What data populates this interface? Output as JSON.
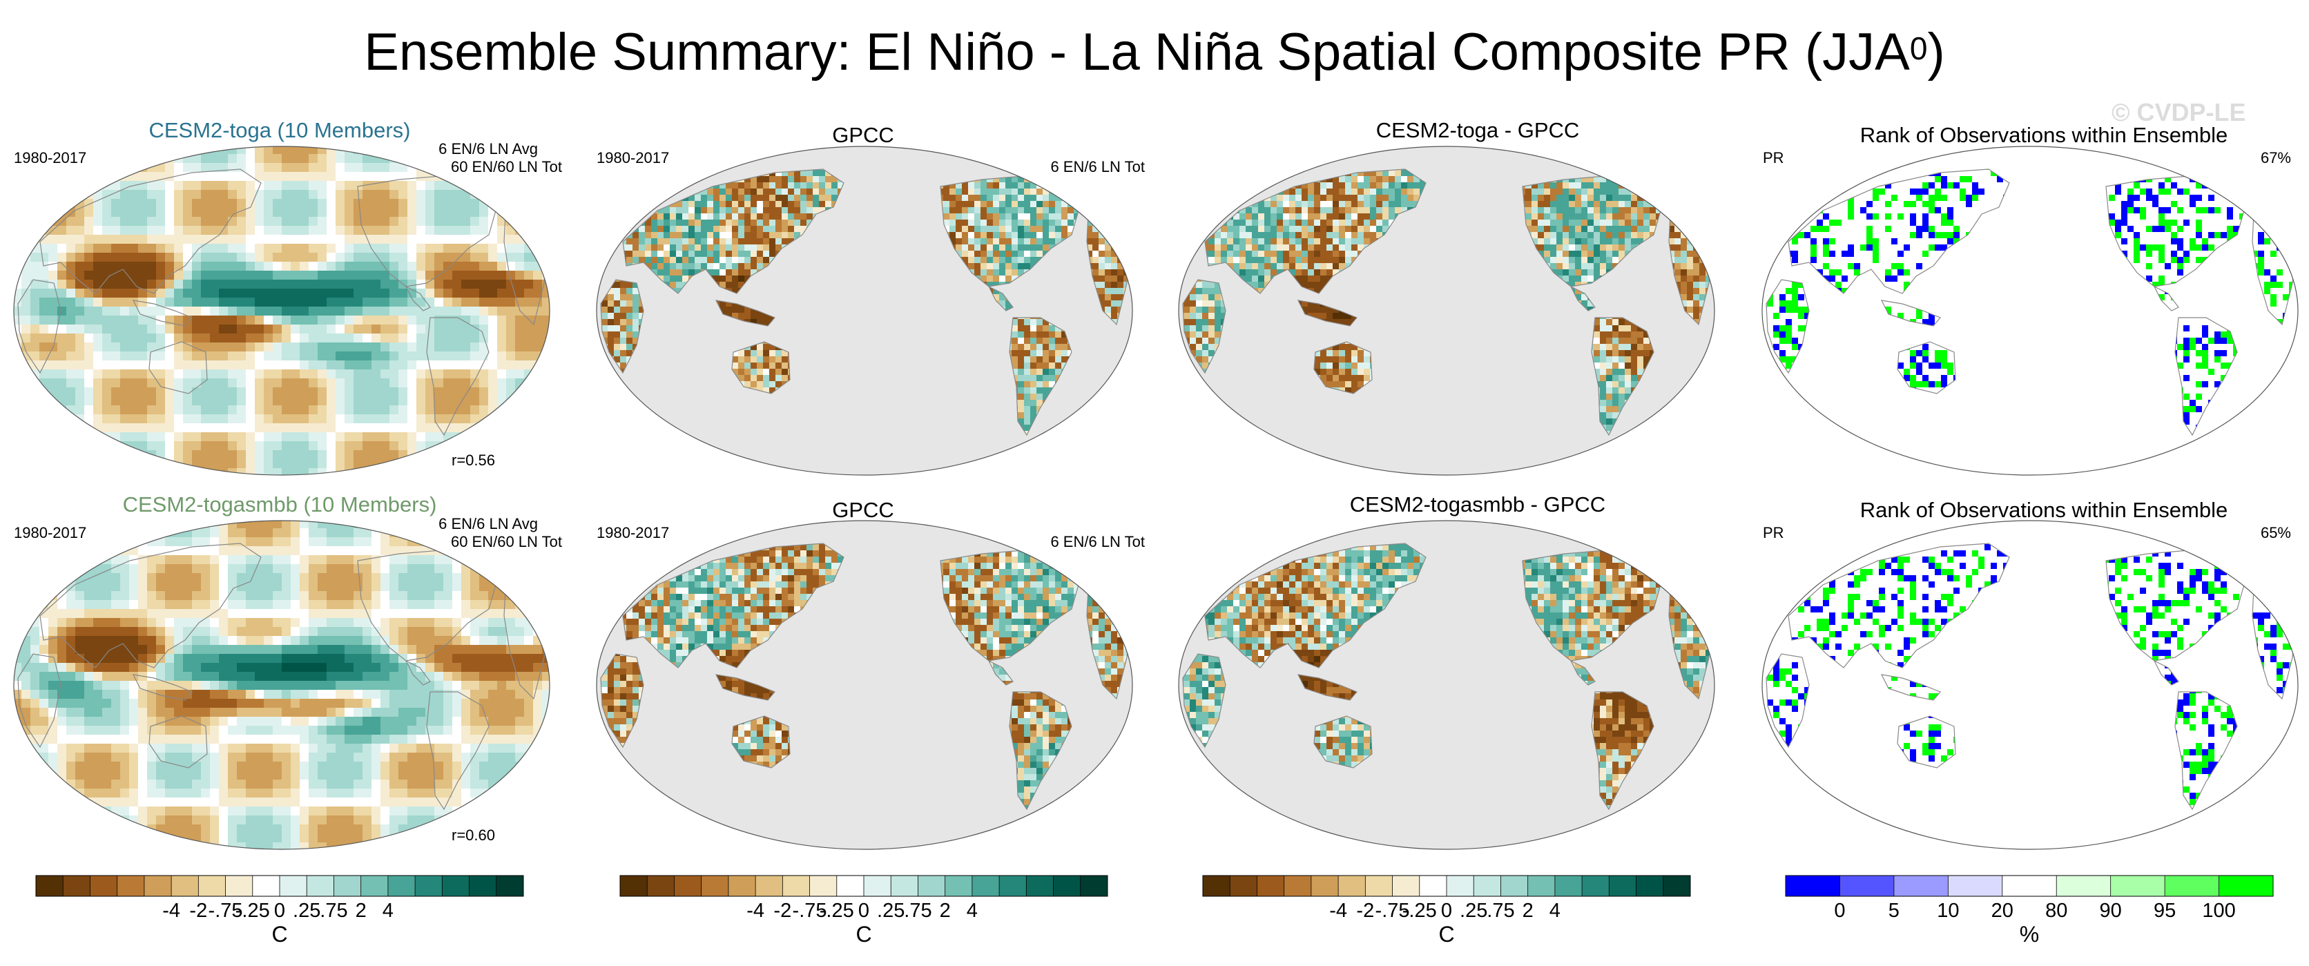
{
  "title": "Ensemble Summary: El Niño - La Niña Spatial Composite PR (JJA",
  "title_superscript": "0",
  "title_close": ")",
  "watermark": "© CVDP-LE",
  "colors": {
    "diverging": [
      "#543005",
      "#7a4511",
      "#9c5b1d",
      "#b97a35",
      "#cf9e58",
      "#e0bf80",
      "#eed9a8",
      "#f6ecd2",
      "#ffffff",
      "#e0f2ef",
      "#c4e7e1",
      "#a0d6cd",
      "#74c0b3",
      "#48a496",
      "#24877a",
      "#0d6b5d",
      "#005447",
      "#003c30"
    ],
    "rank": [
      "#0000ff",
      "#5555ff",
      "#9a9aff",
      "#dadaff",
      "#ffffff",
      "#dcffdc",
      "#a8ffa8",
      "#60ff60",
      "#00ff00"
    ],
    "ocean_masked": "#e6e6e6",
    "coast": "#888888"
  },
  "rows": [
    {
      "model": {
        "title": "CESM2-toga (10 Members)",
        "title_color": "#2a7390",
        "period": "1980-2017",
        "counts_line1": "6 EN/6 LN Avg",
        "counts_line2": "60 EN/60 LN Tot",
        "corr": "r=0.56"
      },
      "obs": {
        "title": "GPCC",
        "period": "1980-2017",
        "counts_line1": "6 EN/6 LN Tot"
      },
      "diff": {
        "title": "CESM2-toga - GPCC"
      },
      "rank": {
        "title": "Rank of Observations within Ensemble",
        "var": "PR",
        "pct": "67%"
      }
    },
    {
      "model": {
        "title": "CESM2-togasmbb (10 Members)",
        "title_color": "#6f9a6a",
        "period": "1980-2017",
        "counts_line1": "6 EN/6 LN Avg",
        "counts_line2": "60 EN/60 LN Tot",
        "corr": "r=0.60"
      },
      "obs": {
        "title": "GPCC",
        "period": "1980-2017",
        "counts_line1": "6 EN/6 LN Tot"
      },
      "diff": {
        "title": "CESM2-togasmbb - GPCC"
      },
      "rank": {
        "title": "Rank of Observations within Ensemble",
        "var": "PR",
        "pct": "65%"
      }
    }
  ],
  "colorbars": {
    "diverging": {
      "ticks": [
        "-4",
        "-2",
        "-.75",
        "-.25",
        "0",
        ".25",
        ".75",
        "2",
        "4"
      ],
      "unit": "C"
    },
    "rank": {
      "ticks": [
        "0",
        "5",
        "10",
        "20",
        "80",
        "90",
        "95",
        "100"
      ],
      "unit": "%"
    }
  },
  "chart_data": [
    {
      "type": "heatmap",
      "title": "CESM2-toga (10 Members)",
      "projection": "Robinson (Pacific-centered)",
      "period": "1980-2017",
      "units": "C",
      "color_levels": [
        -4,
        -2,
        -0.75,
        -0.25,
        0,
        0.25,
        0.75,
        2,
        4
      ],
      "pattern_correlation": 0.56,
      "features": [
        "strong positive anomaly central/eastern equatorial Pacific",
        "negative anomalies over Maritime Continent and tropical Atlantic/Indian Ocean bands"
      ]
    },
    {
      "type": "heatmap",
      "title": "GPCC",
      "period": "1980-2017",
      "units": "C",
      "ocean_masked": true,
      "features": [
        "land-only observed composite",
        "negative anomalies over Indonesia, India and northern South America"
      ]
    },
    {
      "type": "heatmap",
      "title": "CESM2-toga - GPCC",
      "units": "C",
      "ocean_masked": true
    },
    {
      "type": "heatmap",
      "title": "Rank of Observations within Ensemble",
      "variable": "PR",
      "percent_shown": 67,
      "units": "%",
      "color_levels": [
        0,
        5,
        10,
        20,
        80,
        90,
        95,
        100
      ]
    },
    {
      "type": "heatmap",
      "title": "CESM2-togasmbb (10 Members)",
      "projection": "Robinson (Pacific-centered)",
      "period": "1980-2017",
      "units": "C",
      "color_levels": [
        -4,
        -2,
        -0.75,
        -0.25,
        0,
        0.25,
        0.75,
        2,
        4
      ],
      "pattern_correlation": 0.6
    },
    {
      "type": "heatmap",
      "title": "GPCC",
      "period": "1980-2017",
      "units": "C",
      "ocean_masked": true
    },
    {
      "type": "heatmap",
      "title": "CESM2-togasmbb - GPCC",
      "units": "C",
      "ocean_masked": true
    },
    {
      "type": "heatmap",
      "title": "Rank of Observations within Ensemble",
      "variable": "PR",
      "percent_shown": 65,
      "units": "%",
      "color_levels": [
        0,
        5,
        10,
        20,
        80,
        90,
        95,
        100
      ]
    }
  ]
}
